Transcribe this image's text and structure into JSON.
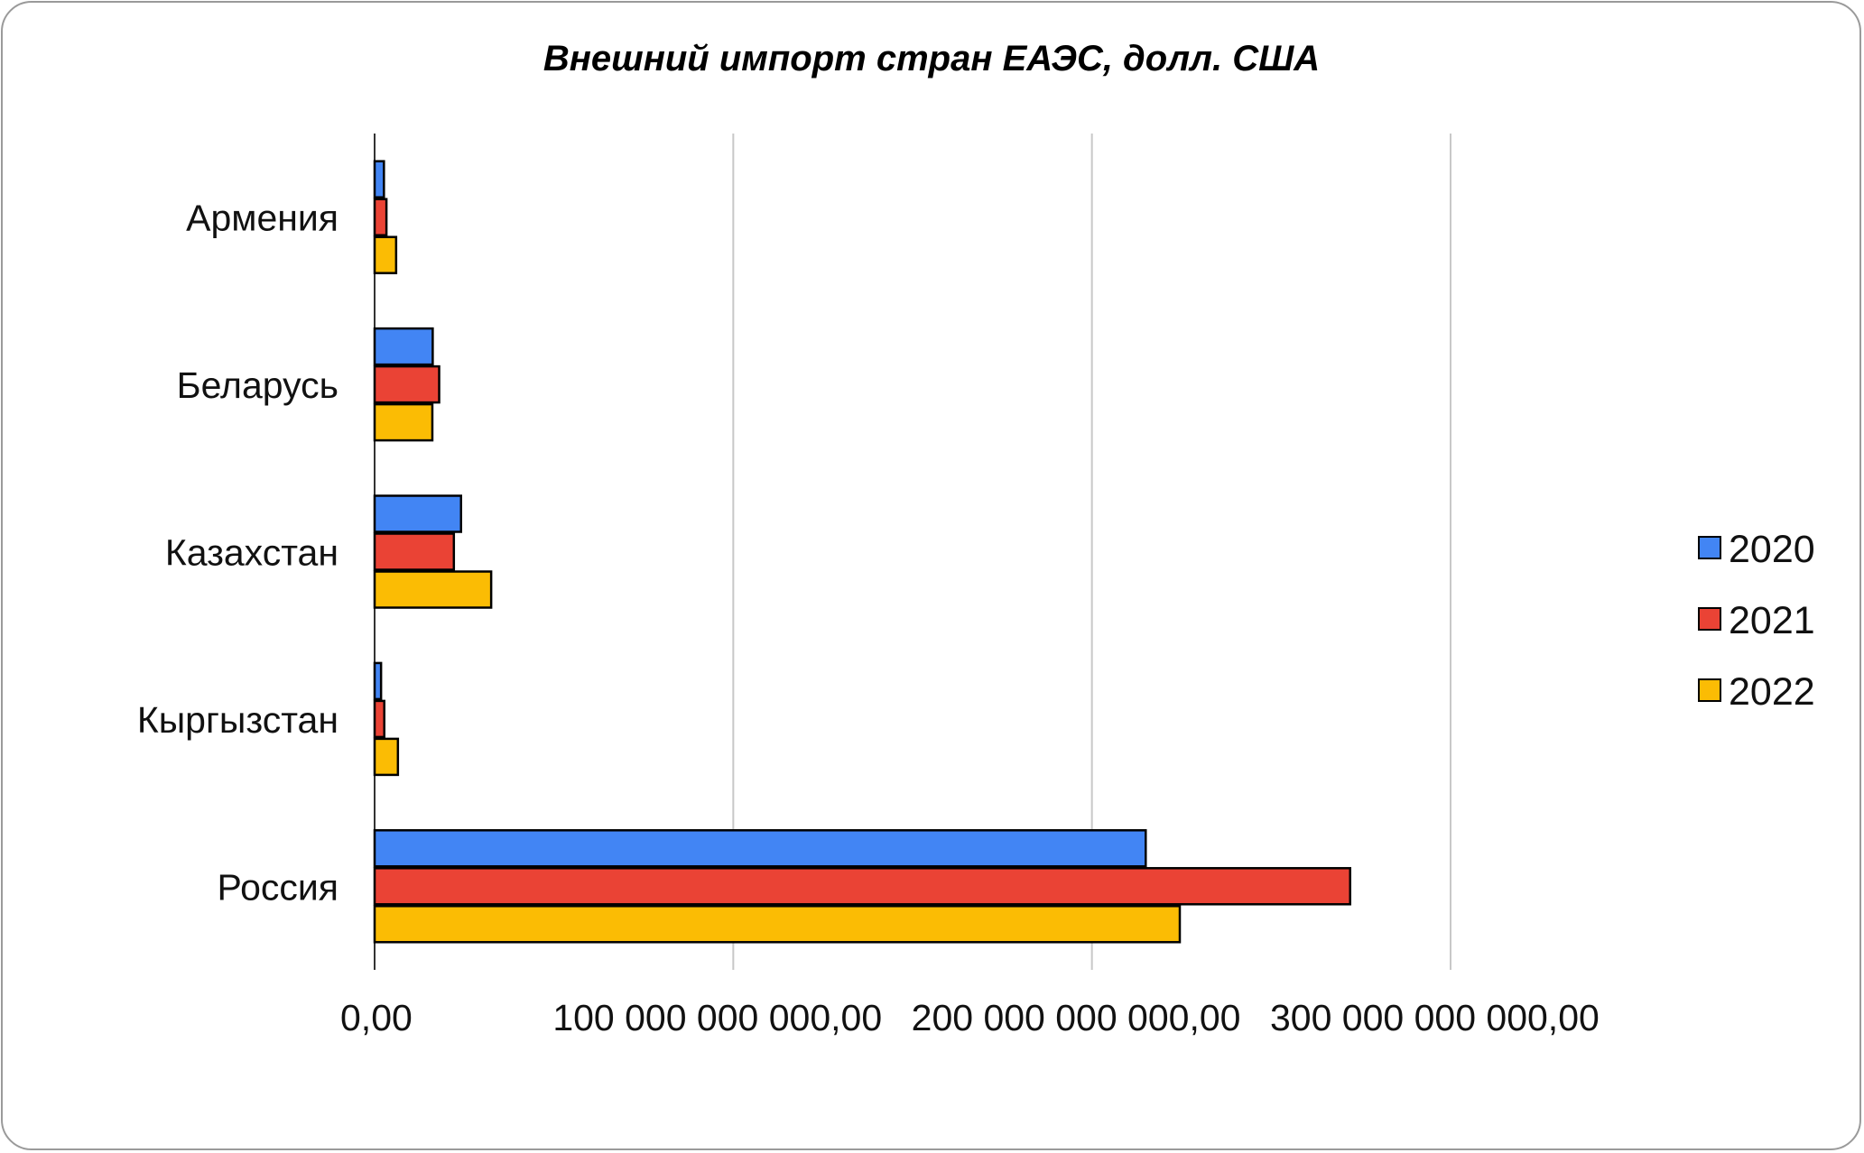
{
  "chart_data": {
    "type": "bar",
    "orientation": "horizontal",
    "title": "Внешний импорт стран ЕАЭС, долл. США",
    "xlabel": "",
    "ylabel": "",
    "categories": [
      "Армения",
      "Беларусь",
      "Казахстан",
      "Кыргызстан",
      "Россия"
    ],
    "series": [
      {
        "name": "2020",
        "color": "#4285f4",
        "values": [
          2600000000,
          16200000000,
          24100000000,
          1800000000,
          215000000000
        ]
      },
      {
        "name": "2021",
        "color": "#ea4335",
        "values": [
          3300000000,
          18000000000,
          22100000000,
          2700000000,
          272000000000
        ]
      },
      {
        "name": "2022",
        "color": "#fbbc04",
        "values": [
          6000000000,
          16100000000,
          32500000000,
          6500000000,
          224500000000
        ]
      }
    ],
    "xlim": [
      0,
      300000000000
    ],
    "xticks": [
      0,
      100000000000,
      200000000000,
      300000000000
    ],
    "xtick_labels": [
      "0,00",
      "100 000 000 000,00",
      "200 000 000 000,00",
      "300 000 000 000,00"
    ],
    "grid": true,
    "legend_position": "right"
  }
}
